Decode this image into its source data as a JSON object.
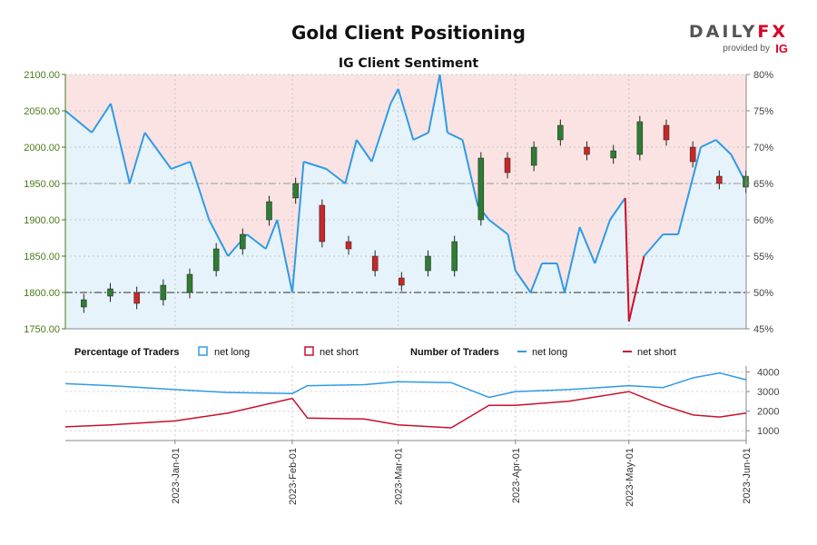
{
  "header": {
    "title": "Gold Client Positioning",
    "subtitle": "IG Client Sentiment",
    "logo_text": "DAILY",
    "logo_fx": "FX",
    "logo_provided": "provided by",
    "logo_ig": "IG"
  },
  "legend": {
    "pct_title": "Percentage of Traders",
    "pct_long": "net long",
    "pct_short": "net short",
    "num_title": "Number of Traders",
    "num_long": "net long",
    "num_short": "net short"
  },
  "colors": {
    "long": "#2f9be5",
    "short": "#c8102e",
    "bull": "#2e7d32",
    "bear": "#c62828",
    "long_fill": "#e6f3fb",
    "short_fill": "#fbe3e3",
    "price_axis": "#4a7a1a"
  },
  "chart_data": [
    {
      "type": "candlestick",
      "title": "IG Client Sentiment",
      "ylim": [
        1750,
        2100
      ],
      "y2lim": [
        45,
        80
      ],
      "y_ticks": [
        "1750.00",
        "1800.00",
        "1850.00",
        "1900.00",
        "1950.00",
        "2000.00",
        "2050.00",
        "2100.00"
      ],
      "y2_ticks": [
        "45%",
        "50%",
        "55%",
        "60%",
        "65%",
        "70%",
        "75%",
        "80%"
      ],
      "x_ticks": [
        "2023-Jan-01",
        "2023-Feb-01",
        "2023-Mar-01",
        "2023-Apr-01",
        "2023-May-01",
        "2023-Jun-01"
      ],
      "x_start": "2022-12-03",
      "x_end": "2023-06-01",
      "ohlc_weekly": [
        {
          "week": "2022-12-05",
          "open": 1780,
          "close": 1790
        },
        {
          "week": "2022-12-12",
          "open": 1795,
          "close": 1805
        },
        {
          "week": "2022-12-19",
          "open": 1800,
          "close": 1785
        },
        {
          "week": "2022-12-26",
          "open": 1790,
          "close": 1810
        },
        {
          "week": "2023-01-02",
          "open": 1800,
          "close": 1825
        },
        {
          "week": "2023-01-09",
          "open": 1830,
          "close": 1860
        },
        {
          "week": "2023-01-16",
          "open": 1860,
          "close": 1880
        },
        {
          "week": "2023-01-23",
          "open": 1900,
          "close": 1925
        },
        {
          "week": "2023-01-30",
          "open": 1930,
          "close": 1950
        },
        {
          "week": "2023-02-06",
          "open": 1920,
          "close": 1870
        },
        {
          "week": "2023-02-13",
          "open": 1870,
          "close": 1860
        },
        {
          "week": "2023-02-20",
          "open": 1850,
          "close": 1830
        },
        {
          "week": "2023-02-27",
          "open": 1820,
          "close": 1810
        },
        {
          "week": "2023-03-06",
          "open": 1830,
          "close": 1850
        },
        {
          "week": "2023-03-13",
          "open": 1830,
          "close": 1870
        },
        {
          "week": "2023-03-20",
          "open": 1900,
          "close": 1985
        },
        {
          "week": "2023-03-27",
          "open": 1985,
          "close": 1965
        },
        {
          "week": "2023-04-03",
          "open": 1975,
          "close": 2000
        },
        {
          "week": "2023-04-10",
          "open": 2010,
          "close": 2030
        },
        {
          "week": "2023-04-17",
          "open": 2000,
          "close": 1990
        },
        {
          "week": "2023-04-24",
          "open": 1985,
          "close": 1995
        },
        {
          "week": "2023-05-01",
          "open": 1990,
          "close": 2035
        },
        {
          "week": "2023-05-08",
          "open": 2030,
          "close": 2010
        },
        {
          "week": "2023-05-15",
          "open": 2000,
          "close": 1980
        },
        {
          "week": "2023-05-22",
          "open": 1960,
          "close": 1950
        },
        {
          "week": "2023-05-29",
          "open": 1945,
          "close": 1960
        }
      ],
      "net_long_pct": [
        {
          "date": "2022-12-03",
          "value": 75
        },
        {
          "date": "2022-12-10",
          "value": 72
        },
        {
          "date": "2022-12-15",
          "value": 76
        },
        {
          "date": "2022-12-20",
          "value": 65
        },
        {
          "date": "2022-12-24",
          "value": 72
        },
        {
          "date": "2022-12-31",
          "value": 67
        },
        {
          "date": "2023-01-05",
          "value": 68
        },
        {
          "date": "2023-01-10",
          "value": 60
        },
        {
          "date": "2023-01-15",
          "value": 55
        },
        {
          "date": "2023-01-20",
          "value": 58
        },
        {
          "date": "2023-01-25",
          "value": 56
        },
        {
          "date": "2023-01-28",
          "value": 60
        },
        {
          "date": "2023-02-01",
          "value": 50
        },
        {
          "date": "2023-02-04",
          "value": 68
        },
        {
          "date": "2023-02-10",
          "value": 67
        },
        {
          "date": "2023-02-15",
          "value": 65
        },
        {
          "date": "2023-02-18",
          "value": 71
        },
        {
          "date": "2023-02-22",
          "value": 68
        },
        {
          "date": "2023-02-27",
          "value": 76
        },
        {
          "date": "2023-03-01",
          "value": 78
        },
        {
          "date": "2023-03-05",
          "value": 71
        },
        {
          "date": "2023-03-09",
          "value": 72
        },
        {
          "date": "2023-03-12",
          "value": 80
        },
        {
          "date": "2023-03-14",
          "value": 72
        },
        {
          "date": "2023-03-18",
          "value": 71
        },
        {
          "date": "2023-03-22",
          "value": 62
        },
        {
          "date": "2023-03-25",
          "value": 60
        },
        {
          "date": "2023-03-30",
          "value": 58
        },
        {
          "date": "2023-04-01",
          "value": 53
        },
        {
          "date": "2023-04-05",
          "value": 50
        },
        {
          "date": "2023-04-08",
          "value": 54
        },
        {
          "date": "2023-04-12",
          "value": 54
        },
        {
          "date": "2023-04-14",
          "value": 50
        },
        {
          "date": "2023-04-18",
          "value": 59
        },
        {
          "date": "2023-04-22",
          "value": 54
        },
        {
          "date": "2023-04-26",
          "value": 60
        },
        {
          "date": "2023-04-30",
          "value": 63
        },
        {
          "date": "2023-05-01",
          "value": 46
        },
        {
          "date": "2023-05-05",
          "value": 55
        },
        {
          "date": "2023-05-10",
          "value": 58
        },
        {
          "date": "2023-05-14",
          "value": 58
        },
        {
          "date": "2023-05-20",
          "value": 70
        },
        {
          "date": "2023-05-24",
          "value": 71
        },
        {
          "date": "2023-05-28",
          "value": 69
        },
        {
          "date": "2023-06-01",
          "value": 65
        }
      ],
      "net_long_traders": [
        {
          "date": "2022-12-03",
          "value": 3400
        },
        {
          "date": "2022-12-15",
          "value": 3300
        },
        {
          "date": "2023-01-01",
          "value": 3100
        },
        {
          "date": "2023-01-15",
          "value": 2950
        },
        {
          "date": "2023-02-01",
          "value": 2900
        },
        {
          "date": "2023-02-05",
          "value": 3300
        },
        {
          "date": "2023-02-20",
          "value": 3350
        },
        {
          "date": "2023-03-01",
          "value": 3500
        },
        {
          "date": "2023-03-15",
          "value": 3450
        },
        {
          "date": "2023-03-25",
          "value": 2700
        },
        {
          "date": "2023-04-01",
          "value": 3000
        },
        {
          "date": "2023-04-15",
          "value": 3100
        },
        {
          "date": "2023-05-01",
          "value": 3300
        },
        {
          "date": "2023-05-10",
          "value": 3200
        },
        {
          "date": "2023-05-18",
          "value": 3700
        },
        {
          "date": "2023-05-25",
          "value": 3950
        },
        {
          "date": "2023-06-01",
          "value": 3600
        }
      ],
      "net_short_traders": [
        {
          "date": "2022-12-03",
          "value": 1200
        },
        {
          "date": "2022-12-15",
          "value": 1300
        },
        {
          "date": "2023-01-01",
          "value": 1500
        },
        {
          "date": "2023-01-15",
          "value": 1900
        },
        {
          "date": "2023-02-01",
          "value": 2650
        },
        {
          "date": "2023-02-05",
          "value": 1650
        },
        {
          "date": "2023-02-20",
          "value": 1600
        },
        {
          "date": "2023-03-01",
          "value": 1300
        },
        {
          "date": "2023-03-15",
          "value": 1150
        },
        {
          "date": "2023-03-25",
          "value": 2300
        },
        {
          "date": "2023-04-01",
          "value": 2300
        },
        {
          "date": "2023-04-15",
          "value": 2500
        },
        {
          "date": "2023-05-01",
          "value": 3000
        },
        {
          "date": "2023-05-10",
          "value": 2300
        },
        {
          "date": "2023-05-18",
          "value": 1800
        },
        {
          "date": "2023-05-25",
          "value": 1700
        },
        {
          "date": "2023-06-01",
          "value": 1900
        }
      ],
      "traders_ylim": [
        500,
        4300
      ],
      "traders_ticks": [
        "1000",
        "2000",
        "3000",
        "4000"
      ]
    }
  ]
}
